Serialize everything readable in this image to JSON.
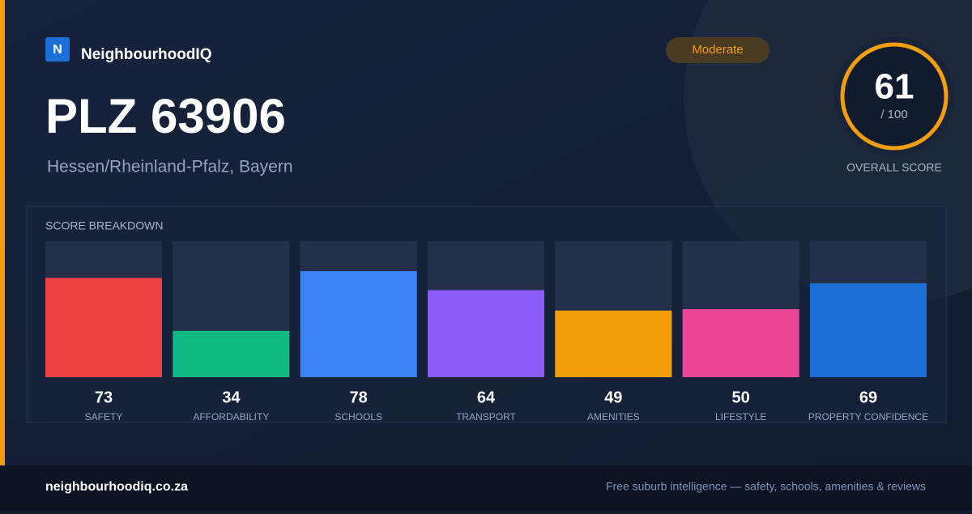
{
  "brand": {
    "logo": "N",
    "name": "NeighbourhoodIQ"
  },
  "badge": "Moderate",
  "title": "PLZ 63906",
  "subtitle": "Hessen/Rheinland-Pfalz, Bayern",
  "overall": {
    "value": 61,
    "label": "/ 100",
    "caption": "OVERALL SCORE"
  },
  "chart_data": {
    "type": "bar",
    "title": "SCORE BREAKDOWN",
    "categories": [
      "SAFETY",
      "AFFORDABILITY",
      "SCHOOLS",
      "TRANSPORT",
      "AMENITIES",
      "LIFESTYLE",
      "PROPERTY CONFIDENCE"
    ],
    "values": [
      73,
      34,
      78,
      64,
      49,
      50,
      69
    ],
    "colors": [
      "#ef4444",
      "#10b981",
      "#3b82f6",
      "#8b5cf6",
      "#f59e0b",
      "#ec4899",
      "#1d6fd8"
    ],
    "ylim": [
      0,
      100
    ]
  },
  "footer": {
    "site": "neighbourhoodiq.co.za",
    "tagline": "Free suburb intelligence — safety, schools, amenities & reviews"
  }
}
